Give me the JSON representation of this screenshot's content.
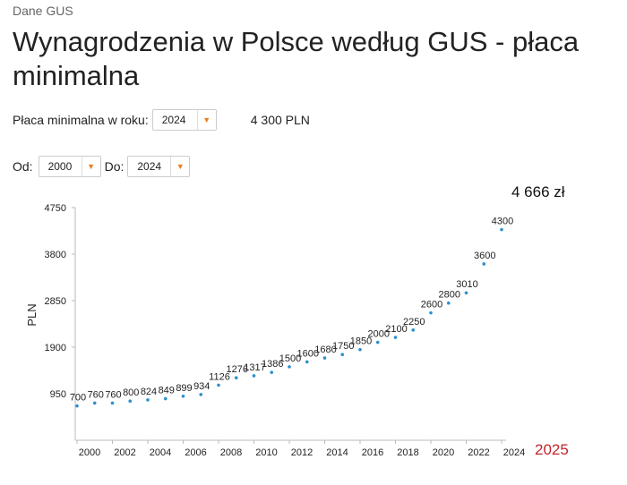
{
  "header": {
    "source": "Dane GUS",
    "title": "Wynagrodzenia w Polsce według GUS - płaca minimalna"
  },
  "controls": {
    "year_label": "Płaca minimalna w roku:",
    "year_value": "2024",
    "wage_value": "4 300 PLN",
    "from_label": "Od:",
    "from_value": "2000",
    "to_label": "Do:",
    "to_value": "2024",
    "arrow_glyph": "▼",
    "accent_color": "#e8801c"
  },
  "highlight": {
    "big_value": "4 666 zł",
    "year": "2025",
    "year_color": "#c0252a"
  },
  "chart_data": {
    "type": "scatter",
    "title": "",
    "xlabel": "",
    "ylabel": "PLN",
    "x": [
      2000,
      2001,
      2002,
      2003,
      2004,
      2005,
      2006,
      2007,
      2008,
      2009,
      2010,
      2011,
      2012,
      2013,
      2014,
      2015,
      2016,
      2017,
      2018,
      2019,
      2020,
      2021,
      2022,
      2023,
      2024
    ],
    "values": [
      700,
      760,
      760,
      800,
      824,
      849,
      899,
      934,
      1126,
      1276,
      1317,
      1386,
      1500,
      1600,
      1680,
      1750,
      1850,
      2000,
      2100,
      2250,
      2600,
      2800,
      3010,
      3600,
      4300
    ],
    "labels": [
      "700",
      "760",
      "760",
      "800",
      "824",
      "849",
      "899",
      "934",
      "1126",
      "1276",
      "1317",
      "1386",
      "1500",
      "1600",
      "1680",
      "1750",
      "1850",
      "2000",
      "2100",
      "2250",
      "2600",
      "2800",
      "3010",
      "3600",
      "4300"
    ],
    "xticks": [
      "2000",
      "2002",
      "2004",
      "2006",
      "2008",
      "2010",
      "2012",
      "2014",
      "2016",
      "2018",
      "2020",
      "2022",
      "2024"
    ],
    "yticks": [
      "950",
      "1900",
      "2850",
      "3800",
      "4750"
    ],
    "ylim": [
      0,
      4750
    ],
    "grid": false,
    "point_color": "#2a8fd0"
  }
}
